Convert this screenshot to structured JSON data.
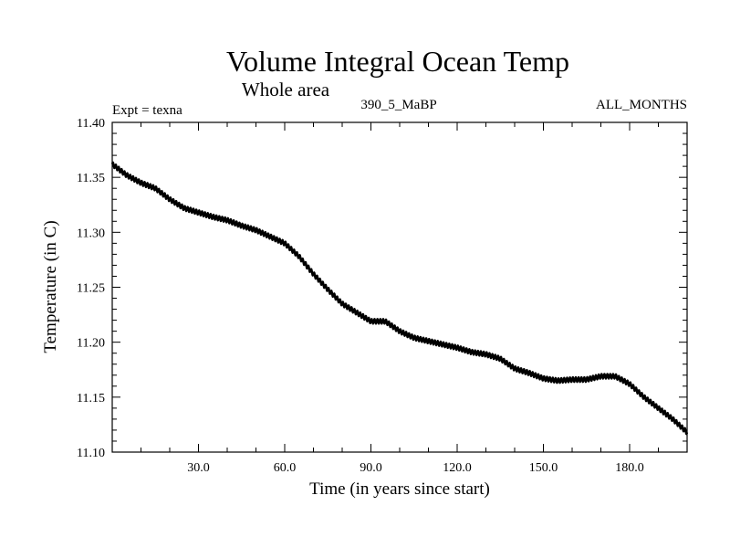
{
  "chart_data": {
    "type": "line",
    "title": "Volume Integral Ocean Temp",
    "subtitle": "Whole area",
    "header": {
      "left": "Expt = texna",
      "center": "390_5_MaBP",
      "right": "ALL_MONTHS"
    },
    "xlabel": "Time (in years since start)",
    "ylabel": "Temperature (in C)",
    "xlim": [
      0,
      200
    ],
    "ylim": [
      11.1,
      11.4
    ],
    "x_ticks": [
      "30.0",
      "60.0",
      "90.0",
      "120.0",
      "150.0",
      "180.0"
    ],
    "y_ticks": [
      "11.10",
      "11.15",
      "11.20",
      "11.25",
      "11.30",
      "11.35",
      "11.40"
    ],
    "seasonal_amplitude": 0.002,
    "series": [
      {
        "name": "Volume integral ocean temperature",
        "color": "#000000",
        "x": [
          0,
          5,
          10,
          15,
          20,
          25,
          30,
          35,
          40,
          45,
          50,
          55,
          60,
          65,
          70,
          75,
          80,
          85,
          90,
          95,
          100,
          105,
          110,
          115,
          120,
          125,
          130,
          135,
          140,
          145,
          150,
          155,
          160,
          165,
          170,
          175,
          180,
          185,
          190,
          195,
          200
        ],
        "y": [
          11.362,
          11.352,
          11.345,
          11.34,
          11.33,
          11.322,
          11.318,
          11.314,
          11.311,
          11.306,
          11.302,
          11.296,
          11.29,
          11.278,
          11.262,
          11.248,
          11.235,
          11.227,
          11.219,
          11.219,
          11.21,
          11.204,
          11.201,
          11.198,
          11.195,
          11.191,
          11.189,
          11.185,
          11.176,
          11.172,
          11.167,
          11.165,
          11.166,
          11.166,
          11.169,
          11.169,
          11.162,
          11.15,
          11.14,
          11.13,
          11.118
        ]
      }
    ]
  }
}
